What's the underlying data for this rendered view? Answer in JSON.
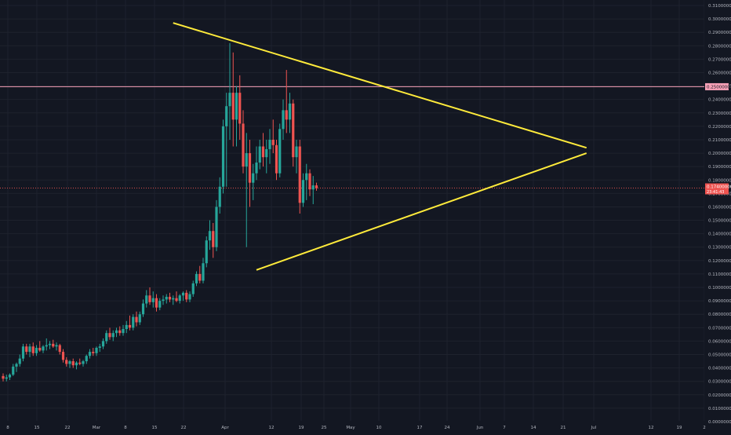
{
  "theme": {
    "background": "#131722",
    "grid": "#1e222d",
    "up": "#26a69a",
    "down": "#ef5350",
    "axis_text": "#b2b5be",
    "trendline": "#ffeb3b",
    "resistance_line": "#f7a1b7"
  },
  "price_axis": {
    "ticks": [
      "0.31000000",
      "0.30000000",
      "0.29000000",
      "0.28000000",
      "0.27000000",
      "0.26000000",
      "0.25000000",
      "0.24000000",
      "0.23000000",
      "0.22000000",
      "0.21000000",
      "0.20000000",
      "0.19000000",
      "0.18000000",
      "0.17000000",
      "0.16000000",
      "0.15000000",
      "0.14000000",
      "0.13000000",
      "0.12000000",
      "0.11000000",
      "0.10000000",
      "0.09000000",
      "0.08000000",
      "0.07000000",
      "0.06000000",
      "0.05000000",
      "0.04000000",
      "0.03000000",
      "0.02000000",
      "0.01000000",
      "0.00000000"
    ],
    "resistance_label": "0.25000000",
    "current_label": "0.17400000",
    "current_countdown": "23:41:43"
  },
  "time_axis": {
    "labels": [
      "8",
      "15",
      "22",
      "Mar",
      "8",
      "15",
      "22",
      "Apr",
      "12",
      "19",
      "25",
      "May",
      "10",
      "17",
      "24",
      "Jun",
      "7",
      "14",
      "21",
      "Jul",
      "12",
      "19",
      "2"
    ]
  },
  "chart_data": {
    "type": "candlestick",
    "title": "",
    "ylim": [
      0,
      0.315
    ],
    "resistance_level": 0.2495,
    "current_price": 0.174,
    "candles": [
      {
        "o": 0.034,
        "h": 0.036,
        "l": 0.03,
        "c": 0.032
      },
      {
        "o": 0.032,
        "h": 0.035,
        "l": 0.03,
        "c": 0.033
      },
      {
        "o": 0.033,
        "h": 0.036,
        "l": 0.031,
        "c": 0.035
      },
      {
        "o": 0.035,
        "h": 0.043,
        "l": 0.034,
        "c": 0.041
      },
      {
        "o": 0.041,
        "h": 0.044,
        "l": 0.037,
        "c": 0.043
      },
      {
        "o": 0.043,
        "h": 0.05,
        "l": 0.041,
        "c": 0.047
      },
      {
        "o": 0.047,
        "h": 0.058,
        "l": 0.045,
        "c": 0.056
      },
      {
        "o": 0.056,
        "h": 0.058,
        "l": 0.05,
        "c": 0.052
      },
      {
        "o": 0.052,
        "h": 0.058,
        "l": 0.048,
        "c": 0.056
      },
      {
        "o": 0.056,
        "h": 0.059,
        "l": 0.049,
        "c": 0.051
      },
      {
        "o": 0.051,
        "h": 0.057,
        "l": 0.049,
        "c": 0.055
      },
      {
        "o": 0.055,
        "h": 0.06,
        "l": 0.052,
        "c": 0.053
      },
      {
        "o": 0.053,
        "h": 0.057,
        "l": 0.051,
        "c": 0.056
      },
      {
        "o": 0.056,
        "h": 0.062,
        "l": 0.053,
        "c": 0.057
      },
      {
        "o": 0.057,
        "h": 0.06,
        "l": 0.054,
        "c": 0.058
      },
      {
        "o": 0.058,
        "h": 0.061,
        "l": 0.055,
        "c": 0.056
      },
      {
        "o": 0.056,
        "h": 0.059,
        "l": 0.053,
        "c": 0.057
      },
      {
        "o": 0.057,
        "h": 0.058,
        "l": 0.05,
        "c": 0.052
      },
      {
        "o": 0.052,
        "h": 0.054,
        "l": 0.044,
        "c": 0.046
      },
      {
        "o": 0.046,
        "h": 0.048,
        "l": 0.041,
        "c": 0.043
      },
      {
        "o": 0.043,
        "h": 0.046,
        "l": 0.04,
        "c": 0.045
      },
      {
        "o": 0.045,
        "h": 0.047,
        "l": 0.04,
        "c": 0.042
      },
      {
        "o": 0.042,
        "h": 0.045,
        "l": 0.039,
        "c": 0.044
      },
      {
        "o": 0.044,
        "h": 0.047,
        "l": 0.042,
        "c": 0.043
      },
      {
        "o": 0.043,
        "h": 0.046,
        "l": 0.041,
        "c": 0.045
      },
      {
        "o": 0.045,
        "h": 0.05,
        "l": 0.043,
        "c": 0.049
      },
      {
        "o": 0.049,
        "h": 0.054,
        "l": 0.047,
        "c": 0.052
      },
      {
        "o": 0.052,
        "h": 0.055,
        "l": 0.049,
        "c": 0.051
      },
      {
        "o": 0.051,
        "h": 0.056,
        "l": 0.049,
        "c": 0.055
      },
      {
        "o": 0.055,
        "h": 0.058,
        "l": 0.052,
        "c": 0.056
      },
      {
        "o": 0.056,
        "h": 0.062,
        "l": 0.054,
        "c": 0.06
      },
      {
        "o": 0.06,
        "h": 0.068,
        "l": 0.058,
        "c": 0.066
      },
      {
        "o": 0.066,
        "h": 0.07,
        "l": 0.061,
        "c": 0.063
      },
      {
        "o": 0.063,
        "h": 0.068,
        "l": 0.06,
        "c": 0.066
      },
      {
        "o": 0.066,
        "h": 0.07,
        "l": 0.063,
        "c": 0.068
      },
      {
        "o": 0.068,
        "h": 0.071,
        "l": 0.064,
        "c": 0.066
      },
      {
        "o": 0.066,
        "h": 0.072,
        "l": 0.064,
        "c": 0.069
      },
      {
        "o": 0.069,
        "h": 0.075,
        "l": 0.066,
        "c": 0.072
      },
      {
        "o": 0.072,
        "h": 0.079,
        "l": 0.068,
        "c": 0.07
      },
      {
        "o": 0.07,
        "h": 0.08,
        "l": 0.068,
        "c": 0.078
      },
      {
        "o": 0.078,
        "h": 0.082,
        "l": 0.071,
        "c": 0.074
      },
      {
        "o": 0.074,
        "h": 0.082,
        "l": 0.072,
        "c": 0.08
      },
      {
        "o": 0.08,
        "h": 0.091,
        "l": 0.078,
        "c": 0.088
      },
      {
        "o": 0.088,
        "h": 0.098,
        "l": 0.085,
        "c": 0.094
      },
      {
        "o": 0.094,
        "h": 0.1,
        "l": 0.087,
        "c": 0.089
      },
      {
        "o": 0.089,
        "h": 0.097,
        "l": 0.085,
        "c": 0.092
      },
      {
        "o": 0.092,
        "h": 0.095,
        "l": 0.082,
        "c": 0.085
      },
      {
        "o": 0.085,
        "h": 0.092,
        "l": 0.083,
        "c": 0.09
      },
      {
        "o": 0.09,
        "h": 0.094,
        "l": 0.087,
        "c": 0.091
      },
      {
        "o": 0.091,
        "h": 0.095,
        "l": 0.088,
        "c": 0.093
      },
      {
        "o": 0.093,
        "h": 0.096,
        "l": 0.089,
        "c": 0.091
      },
      {
        "o": 0.091,
        "h": 0.094,
        "l": 0.087,
        "c": 0.092
      },
      {
        "o": 0.092,
        "h": 0.097,
        "l": 0.089,
        "c": 0.09
      },
      {
        "o": 0.09,
        "h": 0.095,
        "l": 0.088,
        "c": 0.094
      },
      {
        "o": 0.094,
        "h": 0.097,
        "l": 0.09,
        "c": 0.096
      },
      {
        "o": 0.096,
        "h": 0.098,
        "l": 0.089,
        "c": 0.091
      },
      {
        "o": 0.091,
        "h": 0.097,
        "l": 0.089,
        "c": 0.095
      },
      {
        "o": 0.095,
        "h": 0.105,
        "l": 0.093,
        "c": 0.103
      },
      {
        "o": 0.103,
        "h": 0.112,
        "l": 0.101,
        "c": 0.11
      },
      {
        "o": 0.11,
        "h": 0.116,
        "l": 0.103,
        "c": 0.105
      },
      {
        "o": 0.105,
        "h": 0.122,
        "l": 0.103,
        "c": 0.118
      },
      {
        "o": 0.118,
        "h": 0.138,
        "l": 0.115,
        "c": 0.135
      },
      {
        "o": 0.135,
        "h": 0.15,
        "l": 0.128,
        "c": 0.142
      },
      {
        "o": 0.142,
        "h": 0.148,
        "l": 0.122,
        "c": 0.13
      },
      {
        "o": 0.13,
        "h": 0.165,
        "l": 0.127,
        "c": 0.16
      },
      {
        "o": 0.16,
        "h": 0.182,
        "l": 0.155,
        "c": 0.175
      },
      {
        "o": 0.175,
        "h": 0.225,
        "l": 0.17,
        "c": 0.22
      },
      {
        "o": 0.22,
        "h": 0.245,
        "l": 0.175,
        "c": 0.235
      },
      {
        "o": 0.235,
        "h": 0.282,
        "l": 0.21,
        "c": 0.245
      },
      {
        "o": 0.245,
        "h": 0.275,
        "l": 0.205,
        "c": 0.225
      },
      {
        "o": 0.225,
        "h": 0.25,
        "l": 0.205,
        "c": 0.245
      },
      {
        "o": 0.245,
        "h": 0.258,
        "l": 0.21,
        "c": 0.222
      },
      {
        "o": 0.222,
        "h": 0.232,
        "l": 0.185,
        "c": 0.19
      },
      {
        "o": 0.19,
        "h": 0.215,
        "l": 0.13,
        "c": 0.2
      },
      {
        "o": 0.2,
        "h": 0.21,
        "l": 0.16,
        "c": 0.178
      },
      {
        "o": 0.178,
        "h": 0.192,
        "l": 0.165,
        "c": 0.185
      },
      {
        "o": 0.185,
        "h": 0.205,
        "l": 0.18,
        "c": 0.193
      },
      {
        "o": 0.193,
        "h": 0.21,
        "l": 0.188,
        "c": 0.205
      },
      {
        "o": 0.205,
        "h": 0.215,
        "l": 0.19,
        "c": 0.197
      },
      {
        "o": 0.197,
        "h": 0.21,
        "l": 0.185,
        "c": 0.203
      },
      {
        "o": 0.203,
        "h": 0.218,
        "l": 0.192,
        "c": 0.21
      },
      {
        "o": 0.21,
        "h": 0.225,
        "l": 0.2,
        "c": 0.206
      },
      {
        "o": 0.206,
        "h": 0.21,
        "l": 0.18,
        "c": 0.185
      },
      {
        "o": 0.185,
        "h": 0.222,
        "l": 0.182,
        "c": 0.218
      },
      {
        "o": 0.218,
        "h": 0.24,
        "l": 0.21,
        "c": 0.232
      },
      {
        "o": 0.232,
        "h": 0.262,
        "l": 0.215,
        "c": 0.225
      },
      {
        "o": 0.225,
        "h": 0.245,
        "l": 0.215,
        "c": 0.237
      },
      {
        "o": 0.237,
        "h": 0.24,
        "l": 0.19,
        "c": 0.197
      },
      {
        "o": 0.197,
        "h": 0.21,
        "l": 0.185,
        "c": 0.205
      },
      {
        "o": 0.205,
        "h": 0.21,
        "l": 0.155,
        "c": 0.163
      },
      {
        "o": 0.163,
        "h": 0.185,
        "l": 0.16,
        "c": 0.18
      },
      {
        "o": 0.18,
        "h": 0.192,
        "l": 0.165,
        "c": 0.185
      },
      {
        "o": 0.185,
        "h": 0.188,
        "l": 0.168,
        "c": 0.173
      },
      {
        "o": 0.173,
        "h": 0.183,
        "l": 0.162,
        "c": 0.176
      },
      {
        "o": 0.176,
        "h": 0.178,
        "l": 0.172,
        "c": 0.174
      }
    ],
    "trendlines": [
      {
        "from": {
          "i": 70,
          "p": 0.2835
        },
        "to": {
          "i": 175,
          "p": 0.204
        }
      },
      {
        "from": {
          "i": 76,
          "p": 0.113
        },
        "to": {
          "i": 175,
          "p": 0.2
        }
      }
    ],
    "trendline_extension_left": {
      "i": 70,
      "p": 0.2835,
      "i0": 51,
      "p0": 0.297
    }
  }
}
